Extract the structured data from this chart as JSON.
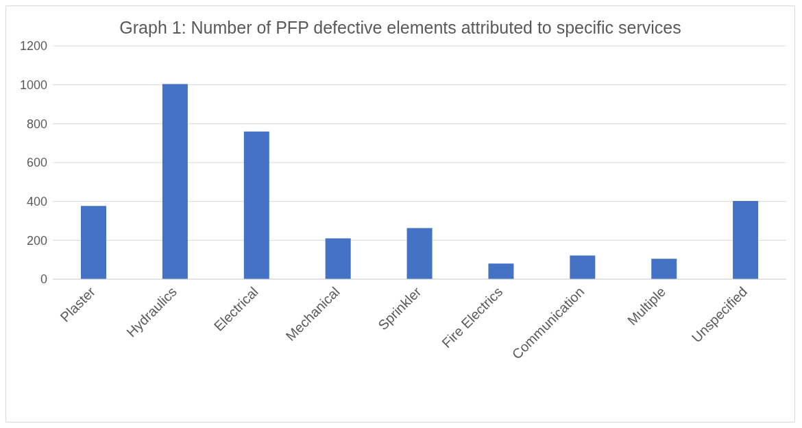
{
  "chart_data": {
    "type": "bar",
    "title": "Graph 1: Number of PFP defective elements attributed to specific services",
    "categories": [
      "Plaster",
      "Hydraulics",
      "Electrical",
      "Mechanical",
      "Sprinkler",
      "Fire Electrics",
      "Communication",
      "Multiple",
      "Unspecified"
    ],
    "values": [
      377,
      1004,
      760,
      210,
      263,
      80,
      122,
      105,
      402
    ],
    "color": "#4472c4",
    "ylim": [
      0,
      1200
    ],
    "yticks": [
      0,
      200,
      400,
      600,
      800,
      1000,
      1200
    ],
    "grid": "y"
  }
}
